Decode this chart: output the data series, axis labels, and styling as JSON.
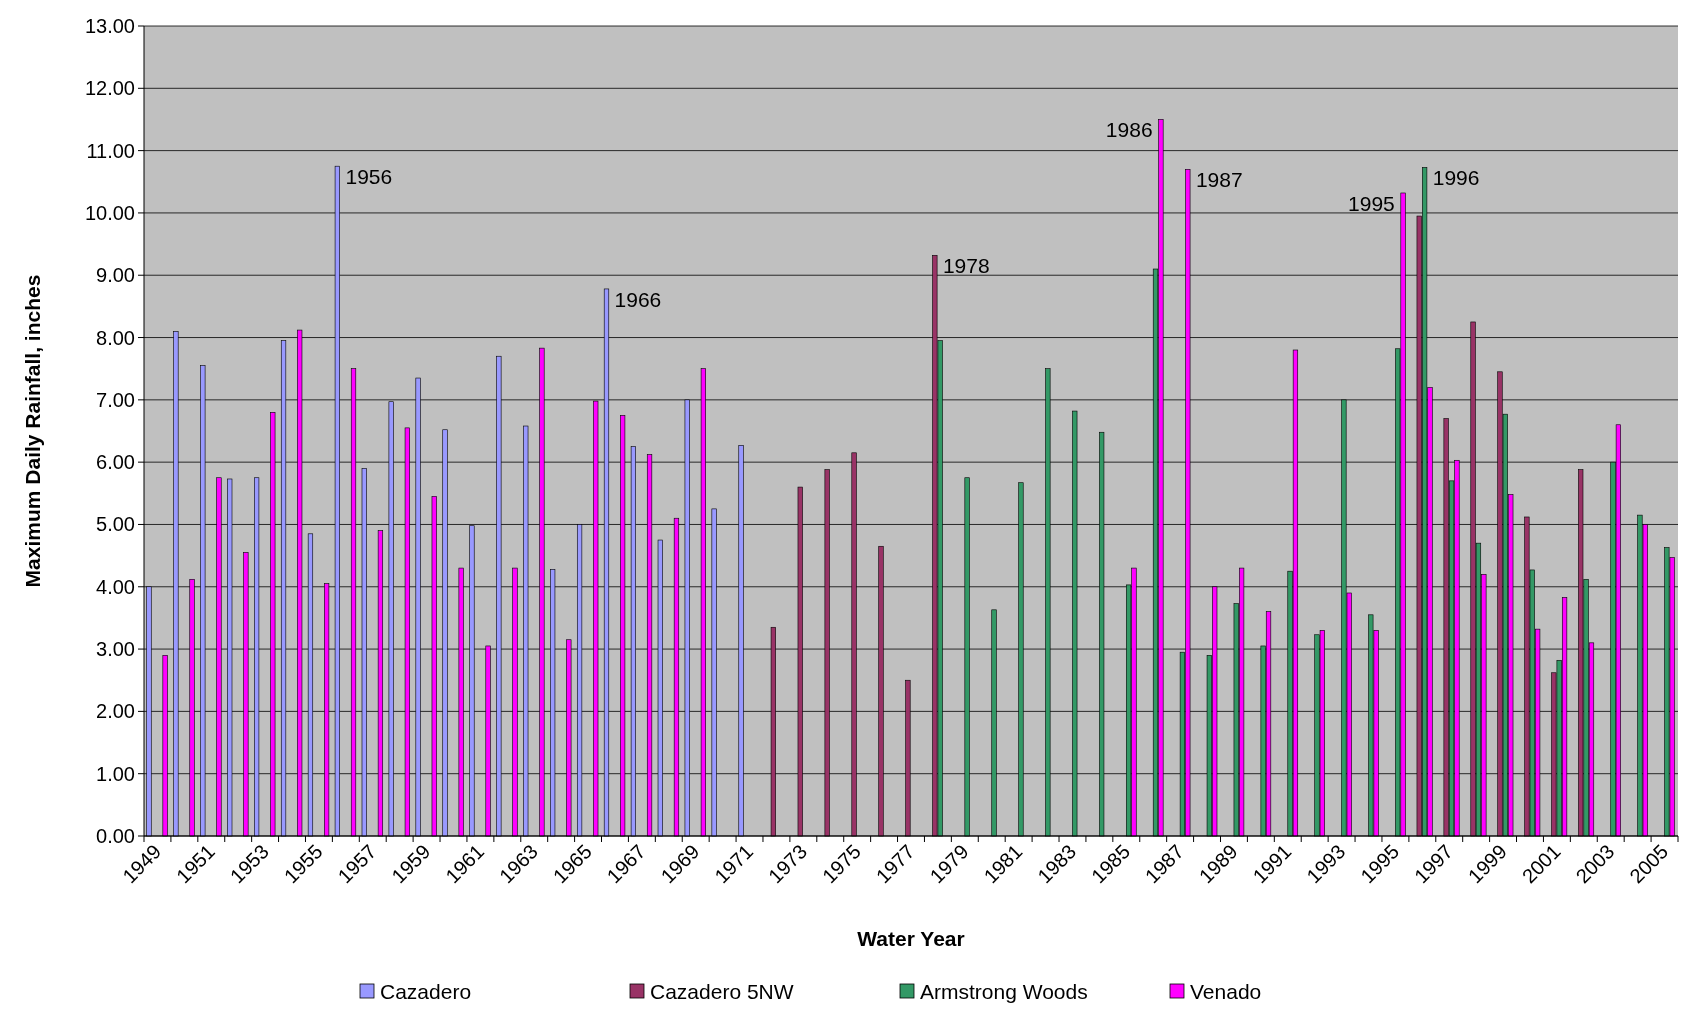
{
  "chart_data": {
    "type": "bar",
    "xlabel": "Water Year",
    "ylabel": "Maximum Daily Rainfall, inches",
    "categories": [
      "1949",
      null,
      "1951",
      null,
      "1953",
      null,
      "1955",
      null,
      "1957",
      null,
      "1959",
      null,
      "1961",
      null,
      "1963",
      null,
      "1965",
      null,
      "1967",
      null,
      "1969",
      null,
      "1971",
      null,
      "1973",
      null,
      "1975",
      null,
      "1977",
      null,
      "1979",
      null,
      "1981",
      null,
      "1983",
      null,
      "1985",
      null,
      "1987",
      null,
      "1989",
      null,
      "1991",
      null,
      "1993",
      null,
      "1995",
      null,
      "1997",
      null,
      "1999",
      null,
      "2001",
      null,
      "2003",
      null,
      "2005"
    ],
    "series": [
      {
        "name": "Cazadero",
        "color": "#9999ff",
        "values": [
          4.0,
          8.1,
          7.55,
          5.73,
          5.75,
          7.95,
          4.85,
          10.75,
          5.9,
          6.97,
          7.35,
          6.52,
          4.98,
          7.7,
          6.58,
          4.28,
          5.0,
          8.78,
          6.25,
          4.75,
          7.0,
          5.25,
          6.27,
          null,
          null,
          null,
          null,
          null,
          null,
          null,
          null,
          null,
          null,
          null,
          null,
          null,
          null,
          null,
          null,
          null,
          null,
          null,
          null,
          null,
          null,
          null,
          null,
          null,
          null,
          null,
          null,
          null,
          null,
          null,
          null,
          null,
          null
        ]
      },
      {
        "name": "Cazadero 5NW",
        "color": "#993366",
        "values": [
          null,
          null,
          null,
          null,
          null,
          null,
          null,
          null,
          null,
          null,
          null,
          null,
          null,
          null,
          null,
          null,
          null,
          null,
          null,
          null,
          null,
          null,
          null,
          3.35,
          5.6,
          5.88,
          6.15,
          4.65,
          2.5,
          9.32,
          null,
          null,
          null,
          null,
          null,
          null,
          null,
          null,
          null,
          null,
          null,
          null,
          null,
          null,
          null,
          null,
          null,
          9.95,
          6.7,
          8.25,
          7.45,
          5.12,
          2.62,
          5.88,
          null,
          null,
          null
        ]
      },
      {
        "name": "Armstrong Woods",
        "color": "#339966",
        "values": [
          null,
          null,
          null,
          null,
          null,
          null,
          null,
          null,
          null,
          null,
          null,
          null,
          null,
          null,
          null,
          null,
          null,
          null,
          null,
          null,
          null,
          null,
          null,
          null,
          null,
          null,
          null,
          null,
          null,
          7.95,
          5.75,
          3.63,
          5.67,
          7.5,
          6.82,
          6.48,
          4.03,
          9.1,
          2.95,
          2.9,
          3.73,
          3.05,
          4.25,
          3.23,
          7.0,
          3.55,
          7.82,
          10.73,
          5.7,
          4.7,
          6.77,
          4.27,
          2.82,
          4.12,
          6.0,
          5.15,
          4.63
        ]
      },
      {
        "name": "Venado",
        "color": "#ff00ff",
        "values": [
          2.9,
          4.12,
          5.75,
          4.55,
          6.8,
          8.12,
          4.05,
          7.5,
          4.9,
          6.55,
          5.45,
          4.3,
          3.05,
          4.3,
          7.83,
          3.15,
          6.98,
          6.75,
          6.12,
          5.1,
          7.5,
          null,
          null,
          null,
          null,
          null,
          null,
          null,
          null,
          null,
          null,
          null,
          null,
          null,
          null,
          null,
          4.3,
          11.5,
          10.7,
          4.0,
          4.3,
          3.6,
          7.8,
          3.3,
          3.9,
          3.3,
          10.32,
          7.2,
          6.03,
          4.2,
          5.48,
          3.32,
          3.83,
          3.1,
          6.6,
          5.0,
          4.47
        ]
      }
    ],
    "ylim": [
      0,
      13
    ],
    "yticks": [
      {
        "value": 0,
        "label": "0.00"
      },
      {
        "value": 1,
        "label": "1.00"
      },
      {
        "value": 2,
        "label": "2.00"
      },
      {
        "value": 3,
        "label": "3.00"
      },
      {
        "value": 4,
        "label": "4.00"
      },
      {
        "value": 5,
        "label": "5.00"
      },
      {
        "value": 6,
        "label": "6.00"
      },
      {
        "value": 7,
        "label": "7.00"
      },
      {
        "value": 8,
        "label": "8.00"
      },
      {
        "value": 9,
        "label": "9.00"
      },
      {
        "value": 10,
        "label": "10.00"
      },
      {
        "value": 11,
        "label": "11.00"
      },
      {
        "value": 12,
        "label": "12.00"
      },
      {
        "value": 13,
        "label": "13.00"
      }
    ],
    "grid": "y",
    "legend": "bottom",
    "annotations": [
      "1956",
      "1966",
      "1978",
      "1986",
      "1987",
      "1995",
      "1996"
    ]
  }
}
